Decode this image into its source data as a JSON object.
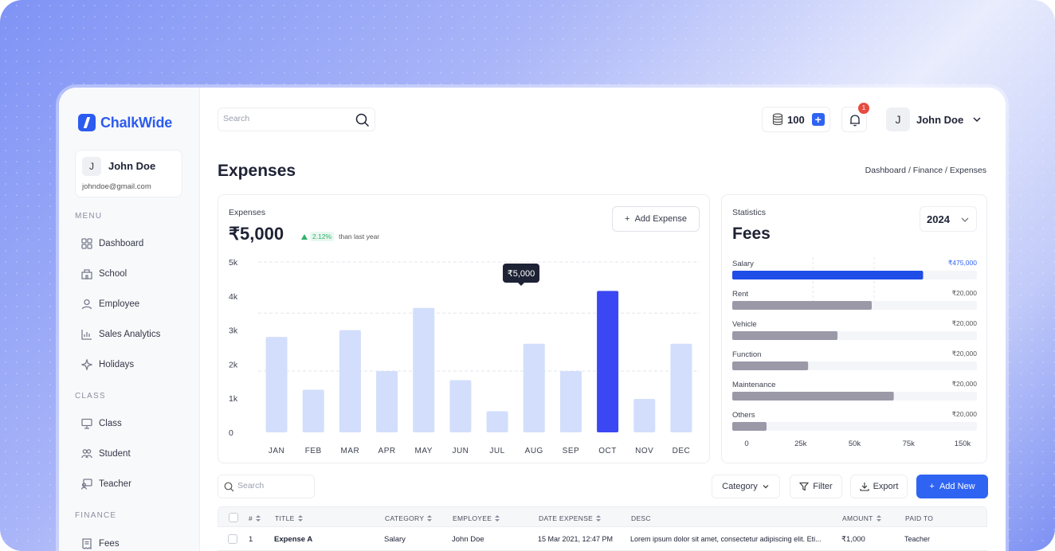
{
  "app": {
    "logo": "ChalkWide",
    "user": {
      "initial": "J",
      "name": "John Doe",
      "email": "johndoe@gmail.com"
    }
  },
  "sidebar": {
    "sections": [
      {
        "label": "MENU",
        "items": [
          {
            "label": "Dashboard",
            "icon": "dashboard-icon"
          },
          {
            "label": "School",
            "icon": "school-icon"
          },
          {
            "label": "Employee",
            "icon": "user-icon"
          },
          {
            "label": "Sales Analytics",
            "icon": "analytics-icon"
          },
          {
            "label": "Holidays",
            "icon": "sparkle-icon"
          }
        ]
      },
      {
        "label": "CLASS",
        "items": [
          {
            "label": "Class",
            "icon": "monitor-icon"
          },
          {
            "label": "Student",
            "icon": "users-icon"
          },
          {
            "label": "Teacher",
            "icon": "teacher-icon"
          }
        ]
      },
      {
        "label": "FINANCE",
        "items": [
          {
            "label": "Fees",
            "icon": "receipt-icon"
          }
        ]
      }
    ]
  },
  "header": {
    "search_placeholder": "Search",
    "credits": "100",
    "notifications": "1",
    "user_initial": "J",
    "user_name": "John Doe"
  },
  "page": {
    "title": "Expenses",
    "breadcrumb": "Dashboard / Finance / Expenses"
  },
  "expenses_card": {
    "label": "Expenses",
    "total": "₹5,000",
    "trend_pct": "2.12%",
    "trend_note": "than last year",
    "add_button": "Add Expense",
    "tooltip": "₹5,000"
  },
  "chart_data": {
    "type": "bar",
    "categories": [
      "JAN",
      "FEB",
      "MAR",
      "APR",
      "MAY",
      "JUN",
      "JUL",
      "AUG",
      "SEP",
      "OCT",
      "NOV",
      "DEC"
    ],
    "values": [
      2800,
      1250,
      3000,
      1800,
      3650,
      1530,
      620,
      2600,
      1800,
      4150,
      980,
      2600
    ],
    "highlight_index": 9,
    "ylim": [
      0,
      5000
    ],
    "yticks": [
      "0",
      "1k",
      "2k",
      "3k",
      "4k",
      "5k"
    ],
    "bar_color": "#d2defc",
    "highlight_color": "#3b47f3",
    "grid": "dashed"
  },
  "stats_card": {
    "label": "Statistics",
    "title": "Fees",
    "year": "2024",
    "xticks": [
      "0",
      "25k",
      "50k",
      "75k",
      "150k"
    ],
    "items": [
      {
        "name": "Salary",
        "amount": "₹475,000",
        "fraction": 0.78,
        "color": "#1f4de8",
        "amount_color": "#2f64f3"
      },
      {
        "name": "Rent",
        "amount": "₹20,000",
        "fraction": 0.57,
        "color": "#9b98a8",
        "amount_color": "#555"
      },
      {
        "name": "Vehicle",
        "amount": "₹20,000",
        "fraction": 0.43,
        "color": "#9b98a8",
        "amount_color": "#555"
      },
      {
        "name": "Function",
        "amount": "₹20,000",
        "fraction": 0.31,
        "color": "#9b98a8",
        "amount_color": "#555"
      },
      {
        "name": "Maintenance",
        "amount": "₹20,000",
        "fraction": 0.66,
        "color": "#9b98a8",
        "amount_color": "#555"
      },
      {
        "name": "Others",
        "amount": "₹20,000",
        "fraction": 0.14,
        "color": "#9b98a8",
        "amount_color": "#555"
      }
    ]
  },
  "toolbar": {
    "search_placeholder": "Search",
    "category": "Category",
    "filter": "Filter",
    "export": "Export",
    "add_new": "Add New"
  },
  "table": {
    "headers": [
      "#",
      "TITLE",
      "CATEGORY",
      "EMPLOYEE",
      "DATE EXPENSE",
      "DESC",
      "AMOUNT",
      "PAID TO"
    ],
    "rows": [
      {
        "num": "1",
        "title": "Expense A",
        "category": "Salary",
        "employee": "John Doe",
        "date": "15 Mar 2021, 12:47 PM",
        "desc": "Lorem ipsum dolor sit amet, consectetur adipiscing elit. Eti...",
        "amount": "₹1,000",
        "paid_to": "Teacher"
      }
    ]
  }
}
